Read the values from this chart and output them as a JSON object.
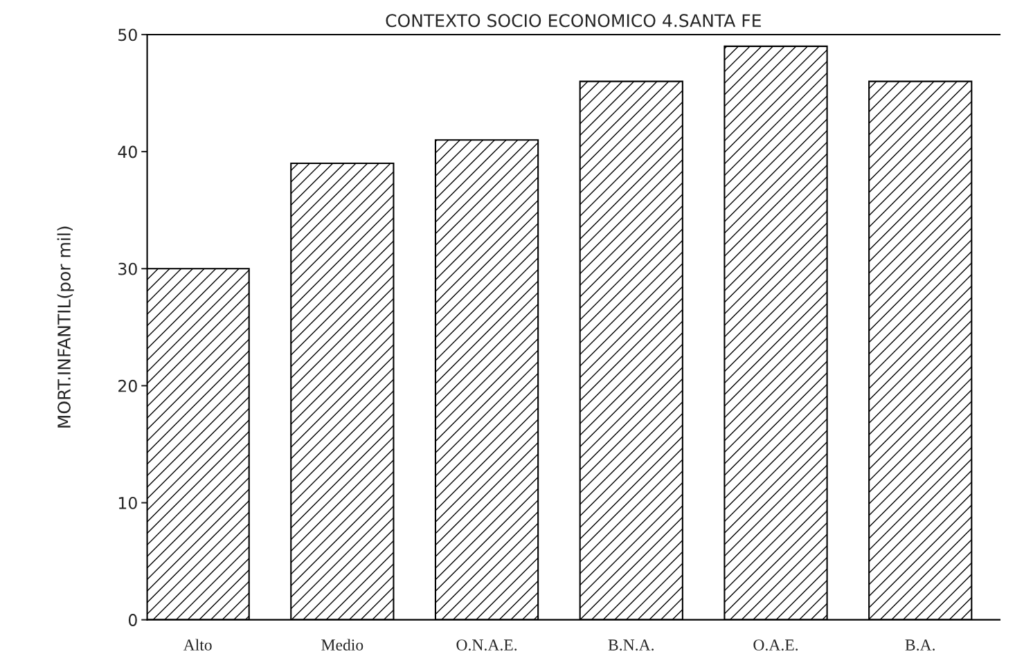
{
  "chart_data": {
    "type": "bar",
    "title": "CONTEXTO SOCIO ECONOMICO 4.SANTA FE",
    "ylabel": "MORT.INFANTIL(por mil)",
    "categories": [
      "Alto",
      "Medio",
      "O.N.A.E.",
      "B.N.A.",
      "O.A.E.",
      "B.A."
    ],
    "values": [
      30,
      39,
      41,
      46,
      49,
      46
    ],
    "color": "#000000",
    "ylim": [
      0,
      50
    ],
    "yticks": [
      0,
      10,
      20,
      30,
      40,
      50
    ],
    "grid": false,
    "legend": false
  }
}
